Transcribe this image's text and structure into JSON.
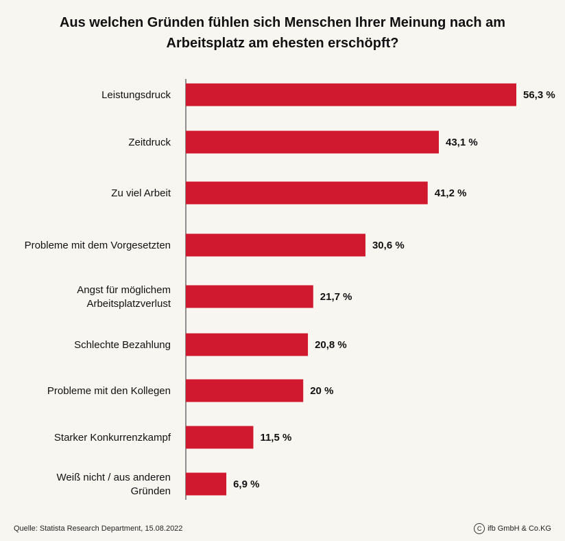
{
  "chart_data": {
    "type": "bar",
    "orientation": "horizontal",
    "title": "Aus welchen Gründen fühlen sich Menschen Ihrer Meinung nach am\nArbeitsplatz am ehesten erschöpft?",
    "categories": [
      "Leistungsdruck",
      "Zeitdruck",
      "Zu viel Arbeit",
      "Probleme mit dem Vorgesetzten",
      "Angst für möglichem\nArbeitsplatzverlust",
      "Schlechte Bezahlung",
      "Probleme mit den Kollegen",
      "Starker Konkurrenzkampf",
      "Weiß nicht / aus anderen\nGründen"
    ],
    "values": [
      56.3,
      43.1,
      41.2,
      30.6,
      21.7,
      20.8,
      20,
      11.5,
      6.9
    ],
    "value_labels": [
      "56,3 %",
      "43,1 %",
      "41,2 %",
      "30,6 %",
      "21,7 %",
      "20,8 %",
      "20 %",
      "11,5 %",
      "6,9 %"
    ],
    "unit": "%",
    "xlabel": "",
    "ylabel": "",
    "xlim": [
      0,
      56.3
    ],
    "grid": false,
    "bar_color": "#d0182e"
  },
  "source": "Quelle: Statista Research Department, 15.08.2022",
  "copyright": {
    "symbol": "C",
    "text": "ifb GmbH & Co.KG"
  }
}
